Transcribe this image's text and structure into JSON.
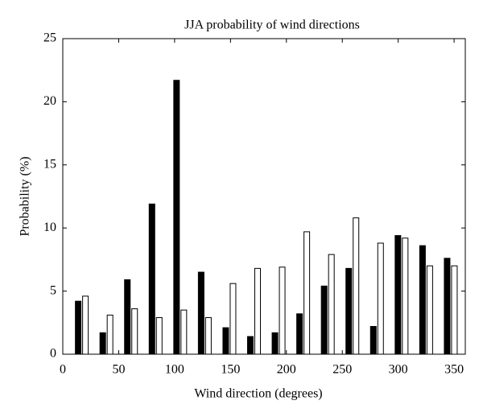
{
  "chart_data": {
    "type": "bar",
    "title": "JJA probability of wind directions",
    "x_label": "Wind direction (degrees)",
    "y_label": "Probability (%)",
    "x": [
      17,
      39,
      61,
      83,
      105,
      127,
      149,
      171,
      193,
      215,
      237,
      259,
      281,
      303,
      325,
      347
    ],
    "series": [
      {
        "color": "#000000",
        "values": [
          4.2,
          1.7,
          5.9,
          11.9,
          21.7,
          6.5,
          2.1,
          1.4,
          1.7,
          3.2,
          5.4,
          6.8,
          2.2,
          9.4,
          8.6,
          7.6
        ]
      },
      {
        "color": "#ffffff",
        "values": [
          4.6,
          3.1,
          3.6,
          2.9,
          3.5,
          2.9,
          5.6,
          6.8,
          6.9,
          9.7,
          7.9,
          10.8,
          8.8,
          9.2,
          7.0,
          7.0
        ]
      }
    ],
    "xlim": [
      0,
      360
    ],
    "xticks": [
      0,
      50,
      100,
      150,
      200,
      250,
      300,
      350
    ],
    "ylim": [
      0,
      25
    ],
    "yticks": [
      0,
      5,
      10,
      15,
      20,
      25
    ]
  }
}
